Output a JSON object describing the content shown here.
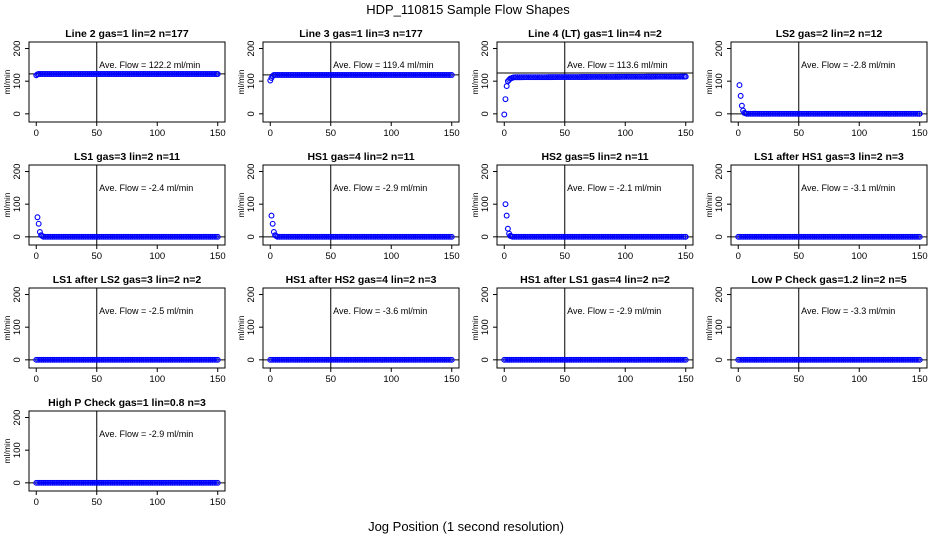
{
  "figure": {
    "title": "HDP_110815  Sample Flow Shapes",
    "xlabel": "Jog Position (1 second resolution)",
    "point_color": "#0000ff",
    "ylabel": "ml/min"
  },
  "chart_data": [
    {
      "type": "scatter",
      "title": "Line 2 gas=1 lin=2 n=177",
      "annotation": "Ave. Flow = 122.2  ml/min",
      "ave_flow": 122.2,
      "xlim": [
        0,
        150
      ],
      "ylim": [
        -25,
        220
      ],
      "xticks": [
        0,
        50,
        100,
        150
      ],
      "yticks": [
        0,
        100,
        200
      ],
      "vline_x": 50,
      "hline_y": 122.2,
      "series": [
        {
          "name": "flow",
          "shape": "plateau",
          "points": [
            [
              0,
              118
            ],
            [
              1,
              121
            ],
            [
              2,
              122
            ],
            [
              150,
              122
            ]
          ]
        }
      ]
    },
    {
      "type": "scatter",
      "title": "Line 3 gas=1 lin=3 n=177",
      "annotation": "Ave. Flow = 119.4  ml/min",
      "ave_flow": 119.4,
      "xlim": [
        0,
        150
      ],
      "ylim": [
        -25,
        220
      ],
      "xticks": [
        0,
        50,
        100,
        150
      ],
      "yticks": [
        0,
        100,
        200
      ],
      "vline_x": 50,
      "hline_y": 119.4,
      "series": [
        {
          "name": "flow",
          "shape": "plateau",
          "points": [
            [
              0,
              102
            ],
            [
              1,
              110
            ],
            [
              2,
              116
            ],
            [
              3,
              119
            ],
            [
              150,
              119
            ]
          ]
        }
      ]
    },
    {
      "type": "scatter",
      "title": "Line 4 (LT) gas=1 lin=4 n=2",
      "annotation": "Ave. Flow = 113.6  ml/min",
      "ave_flow": 113.6,
      "xlim": [
        0,
        150
      ],
      "ylim": [
        -25,
        220
      ],
      "xticks": [
        0,
        50,
        100,
        150
      ],
      "yticks": [
        0,
        100,
        200
      ],
      "vline_x": 50,
      "hline_y": 125,
      "series": [
        {
          "name": "flow",
          "shape": "plateau",
          "points": [
            [
              0,
              -2
            ],
            [
              1,
              45
            ],
            [
              2,
              85
            ],
            [
              3,
              100
            ],
            [
              5,
              108
            ],
            [
              8,
              112
            ],
            [
              150,
              114
            ]
          ]
        }
      ]
    },
    {
      "type": "scatter",
      "title": "LS2 gas=2 lin=2 n=12",
      "annotation": "Ave. Flow = -2.8  ml/min",
      "ave_flow": -2.8,
      "xlim": [
        0,
        150
      ],
      "ylim": [
        -25,
        220
      ],
      "xticks": [
        0,
        50,
        100,
        150
      ],
      "yticks": [
        0,
        100,
        200
      ],
      "vline_x": 50,
      "hline_y": 0,
      "series": [
        {
          "name": "flow",
          "shape": "decay",
          "points": [
            [
              1,
              88
            ],
            [
              2,
              55
            ],
            [
              3,
              25
            ],
            [
              4,
              10
            ],
            [
              5,
              3
            ],
            [
              7,
              0
            ],
            [
              150,
              0
            ]
          ]
        }
      ]
    },
    {
      "type": "scatter",
      "title": "LS1 gas=3 lin=2 n=11",
      "annotation": "Ave. Flow = -2.4  ml/min",
      "ave_flow": -2.4,
      "xlim": [
        0,
        150
      ],
      "ylim": [
        -25,
        220
      ],
      "xticks": [
        0,
        50,
        100,
        150
      ],
      "yticks": [
        0,
        100,
        200
      ],
      "vline_x": 50,
      "hline_y": 0,
      "series": [
        {
          "name": "flow",
          "shape": "decay",
          "points": [
            [
              1,
              60
            ],
            [
              2,
              40
            ],
            [
              3,
              15
            ],
            [
              4,
              5
            ],
            [
              6,
              0
            ],
            [
              150,
              0
            ]
          ]
        }
      ]
    },
    {
      "type": "scatter",
      "title": "HS1 gas=4 lin=2 n=11",
      "annotation": "Ave. Flow = -2.9  ml/min",
      "ave_flow": -2.9,
      "xlim": [
        0,
        150
      ],
      "ylim": [
        -25,
        220
      ],
      "xticks": [
        0,
        50,
        100,
        150
      ],
      "yticks": [
        0,
        100,
        200
      ],
      "vline_x": 50,
      "hline_y": 0,
      "series": [
        {
          "name": "flow",
          "shape": "decay",
          "points": [
            [
              1,
              65
            ],
            [
              2,
              40
            ],
            [
              3,
              15
            ],
            [
              4,
              5
            ],
            [
              6,
              0
            ],
            [
              150,
              0
            ]
          ]
        }
      ]
    },
    {
      "type": "scatter",
      "title": "HS2 gas=5 lin=2 n=11",
      "annotation": "Ave. Flow = -2.1  ml/min",
      "ave_flow": -2.1,
      "xlim": [
        0,
        150
      ],
      "ylim": [
        -25,
        220
      ],
      "xticks": [
        0,
        50,
        100,
        150
      ],
      "yticks": [
        0,
        100,
        200
      ],
      "vline_x": 50,
      "hline_y": 0,
      "series": [
        {
          "name": "flow",
          "shape": "decay",
          "points": [
            [
              1,
              100
            ],
            [
              2,
              65
            ],
            [
              3,
              25
            ],
            [
              4,
              10
            ],
            [
              5,
              3
            ],
            [
              7,
              0
            ],
            [
              150,
              0
            ]
          ]
        }
      ]
    },
    {
      "type": "scatter",
      "title": "LS1 after HS1 gas=3 lin=2 n=3",
      "annotation": "Ave. Flow = -3.1  ml/min",
      "ave_flow": -3.1,
      "xlim": [
        0,
        150
      ],
      "ylim": [
        -25,
        220
      ],
      "xticks": [
        0,
        50,
        100,
        150
      ],
      "yticks": [
        0,
        100,
        200
      ],
      "vline_x": 50,
      "hline_y": 0,
      "series": [
        {
          "name": "flow",
          "shape": "flat",
          "points": [
            [
              0,
              0
            ],
            [
              150,
              0
            ]
          ]
        }
      ]
    },
    {
      "type": "scatter",
      "title": "LS1 after LS2 gas=3 lin=2 n=2",
      "annotation": "Ave. Flow = -2.5  ml/min",
      "ave_flow": -2.5,
      "xlim": [
        0,
        150
      ],
      "ylim": [
        -25,
        220
      ],
      "xticks": [
        0,
        50,
        100,
        150
      ],
      "yticks": [
        0,
        100,
        200
      ],
      "vline_x": 50,
      "hline_y": 0,
      "series": [
        {
          "name": "flow",
          "shape": "flat",
          "points": [
            [
              0,
              0
            ],
            [
              150,
              0
            ]
          ]
        }
      ]
    },
    {
      "type": "scatter",
      "title": "HS1 after HS2 gas=4 lin=2 n=3",
      "annotation": "Ave. Flow = -3.6  ml/min",
      "ave_flow": -3.6,
      "xlim": [
        0,
        150
      ],
      "ylim": [
        -25,
        220
      ],
      "xticks": [
        0,
        50,
        100,
        150
      ],
      "yticks": [
        0,
        100,
        200
      ],
      "vline_x": 50,
      "hline_y": 0,
      "series": [
        {
          "name": "flow",
          "shape": "flat",
          "points": [
            [
              0,
              0
            ],
            [
              150,
              0
            ]
          ]
        }
      ]
    },
    {
      "type": "scatter",
      "title": "HS1 after LS1 gas=4 lin=2 n=2",
      "annotation": "Ave. Flow = -2.9  ml/min",
      "ave_flow": -2.9,
      "xlim": [
        0,
        150
      ],
      "ylim": [
        -25,
        220
      ],
      "xticks": [
        0,
        50,
        100,
        150
      ],
      "yticks": [
        0,
        100,
        200
      ],
      "vline_x": 50,
      "hline_y": 0,
      "series": [
        {
          "name": "flow",
          "shape": "flat",
          "points": [
            [
              0,
              0
            ],
            [
              150,
              0
            ]
          ]
        }
      ]
    },
    {
      "type": "scatter",
      "title": "Low P Check gas=1.2 lin=2 n=5",
      "annotation": "Ave. Flow = -3.3  ml/min",
      "ave_flow": -3.3,
      "xlim": [
        0,
        150
      ],
      "ylim": [
        -25,
        220
      ],
      "xticks": [
        0,
        50,
        100,
        150
      ],
      "yticks": [
        0,
        100,
        200
      ],
      "vline_x": 50,
      "hline_y": 0,
      "series": [
        {
          "name": "flow",
          "shape": "flat",
          "points": [
            [
              0,
              0
            ],
            [
              150,
              0
            ]
          ]
        }
      ]
    },
    {
      "type": "scatter",
      "title": "High P Check gas=1 lin=0.8 n=3",
      "annotation": "Ave. Flow = -2.9  ml/min",
      "ave_flow": -2.9,
      "xlim": [
        0,
        150
      ],
      "ylim": [
        -25,
        220
      ],
      "xticks": [
        0,
        50,
        100,
        150
      ],
      "yticks": [
        0,
        100,
        200
      ],
      "vline_x": 50,
      "hline_y": 0,
      "series": [
        {
          "name": "flow",
          "shape": "flat",
          "points": [
            [
              0,
              0
            ],
            [
              150,
              0
            ]
          ]
        }
      ]
    }
  ]
}
